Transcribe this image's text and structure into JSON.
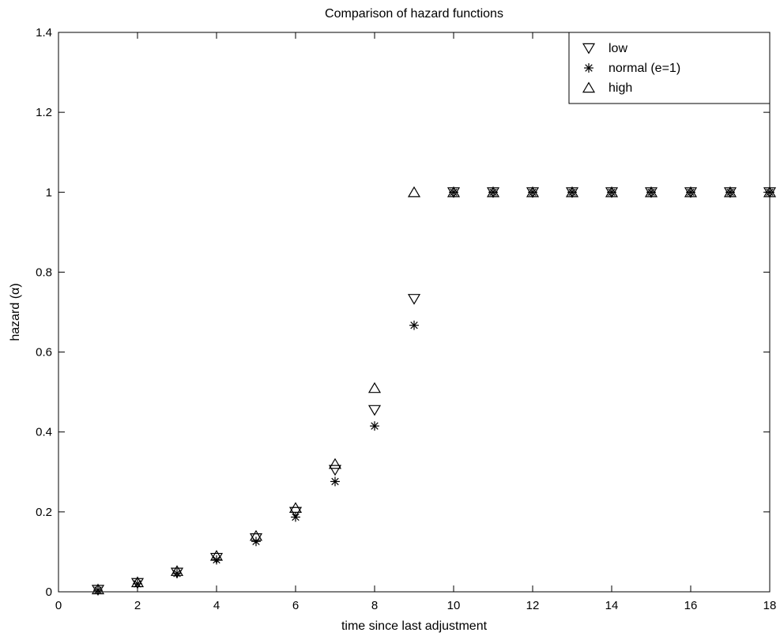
{
  "chart_data": {
    "type": "scatter",
    "title": "Comparison of hazard functions",
    "xlabel": "time since last adjustment",
    "ylabel": "hazard (α)",
    "xlim": [
      0,
      18
    ],
    "ylim": [
      0,
      1.4
    ],
    "xticks": [
      0,
      2,
      4,
      6,
      8,
      10,
      12,
      14,
      16,
      18
    ],
    "xtick_labels": [
      "0",
      "2",
      "4",
      "6",
      "8",
      "10",
      "12",
      "14",
      "16",
      "18"
    ],
    "yticks": [
      0,
      0.2,
      0.4,
      0.6,
      0.8,
      1,
      1.2,
      1.4
    ],
    "ytick_labels": [
      "0",
      "0.2",
      "0.4",
      "0.6",
      "0.8",
      "1",
      "1.2",
      "1.4"
    ],
    "grid": false,
    "legend_position": "top-right",
    "series": [
      {
        "name": "low",
        "marker": "triangle-down",
        "x": [
          1,
          2,
          3,
          4,
          5,
          6,
          7,
          8,
          9,
          10,
          11,
          12,
          13,
          14,
          15,
          16,
          17,
          18
        ],
        "y": [
          0.005,
          0.022,
          0.048,
          0.085,
          0.134,
          0.2,
          0.305,
          0.455,
          0.733,
          1,
          1,
          1,
          1,
          1,
          1,
          1,
          1,
          1
        ]
      },
      {
        "name": "normal (e=1)",
        "marker": "asterisk",
        "x": [
          1,
          2,
          3,
          4,
          5,
          6,
          7,
          8,
          9,
          10,
          11,
          12,
          13,
          14,
          15,
          16,
          17,
          18
        ],
        "y": [
          0.004,
          0.02,
          0.046,
          0.08,
          0.126,
          0.187,
          0.276,
          0.415,
          0.667,
          1,
          1,
          1,
          1,
          1,
          1,
          1,
          1,
          1
        ]
      },
      {
        "name": "high",
        "marker": "triangle-up",
        "x": [
          1,
          2,
          3,
          4,
          5,
          6,
          7,
          8,
          9,
          10,
          11,
          12,
          13,
          14,
          15,
          16,
          17,
          18
        ],
        "y": [
          0.006,
          0.024,
          0.052,
          0.09,
          0.14,
          0.21,
          0.32,
          0.51,
          1,
          1,
          1,
          1,
          1,
          1,
          1,
          1,
          1,
          1
        ]
      }
    ],
    "colors": {
      "marker": "#000000",
      "background": "#ffffff",
      "axes": "#000000"
    }
  }
}
